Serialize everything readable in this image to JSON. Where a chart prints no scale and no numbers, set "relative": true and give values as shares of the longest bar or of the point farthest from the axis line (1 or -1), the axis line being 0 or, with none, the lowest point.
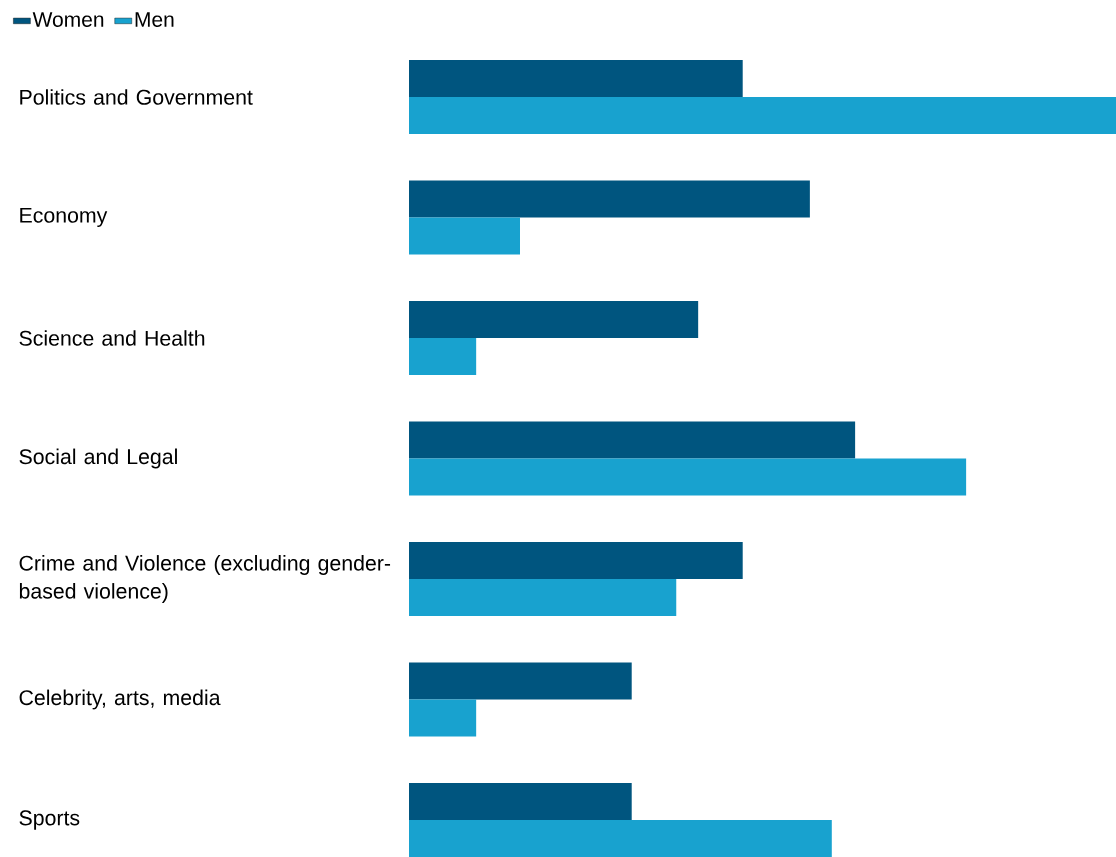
{
  "chart_data": {
    "type": "bar",
    "orientation": "horizontal",
    "relative": true,
    "legend": "top left",
    "categories": [
      "Politics and Government",
      "Economy",
      "Science and Health",
      "Social and Legal",
      "Crime and Violence (excluding gender-based violence)",
      "Celebrity, arts, media",
      "Sports"
    ],
    "series": [
      {
        "name": "Women",
        "color": "#00557f",
        "values": [
          0.472,
          0.567,
          0.409,
          0.631,
          0.472,
          0.315,
          0.315
        ]
      },
      {
        "name": "Men",
        "color": "#18a2cf",
        "values": [
          1,
          0.157,
          0.095,
          0.788,
          0.378,
          0.095,
          0.598
        ]
      }
    ]
  }
}
